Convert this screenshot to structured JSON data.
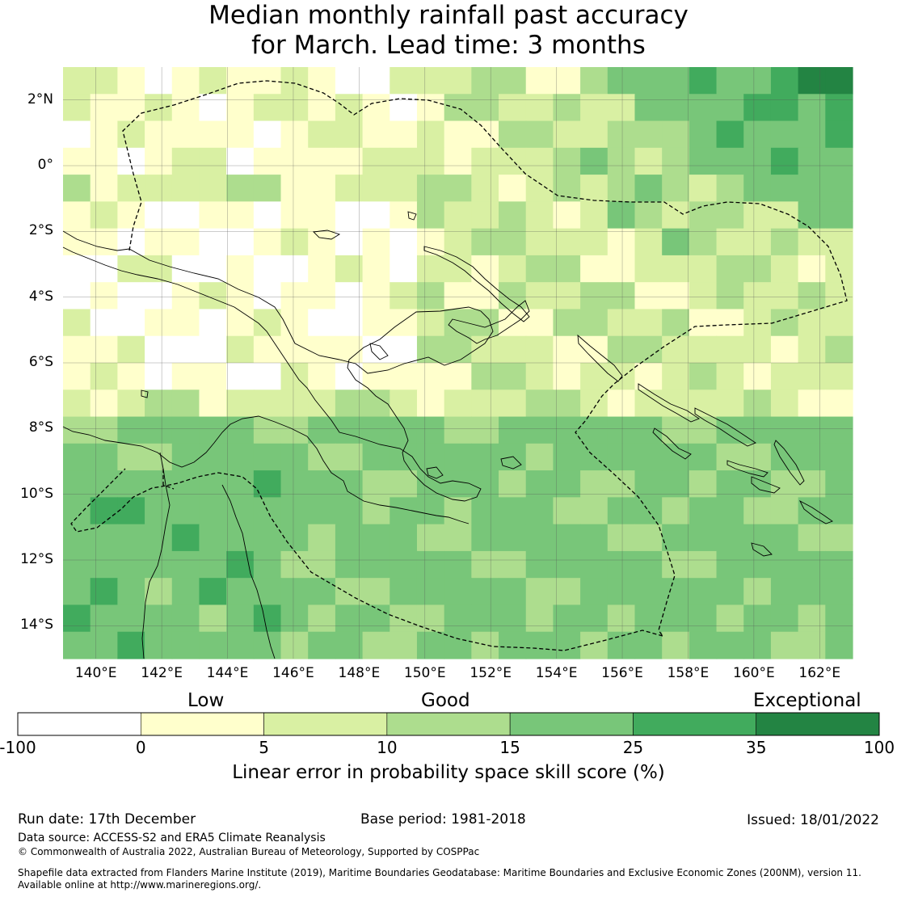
{
  "title": {
    "line1": "Median monthly rainfall past accuracy",
    "line2": "for March. Lead time: 3 months"
  },
  "map": {
    "lon_range": [
      139,
      163
    ],
    "lat_range": [
      -15,
      3
    ],
    "lat_ticks": [
      {
        "value": 2,
        "label": "2°N"
      },
      {
        "value": 0,
        "label": "0°"
      },
      {
        "value": -2,
        "label": "2°S"
      },
      {
        "value": -4,
        "label": "4°S"
      },
      {
        "value": -6,
        "label": "6°S"
      },
      {
        "value": -8,
        "label": "8°S"
      },
      {
        "value": -10,
        "label": "10°S"
      },
      {
        "value": -12,
        "label": "12°S"
      },
      {
        "value": -14,
        "label": "14°S"
      }
    ],
    "lon_ticks": [
      {
        "value": 140,
        "label": "140°E"
      },
      {
        "value": 142,
        "label": "142°E"
      },
      {
        "value": 144,
        "label": "144°E"
      },
      {
        "value": 146,
        "label": "146°E"
      },
      {
        "value": 148,
        "label": "148°E"
      },
      {
        "value": 150,
        "label": "150°E"
      },
      {
        "value": 152,
        "label": "152°E"
      },
      {
        "value": 154,
        "label": "154°E"
      },
      {
        "value": 156,
        "label": "156°E"
      },
      {
        "value": 158,
        "label": "158°E"
      },
      {
        "value": 160,
        "label": "160°E"
      },
      {
        "value": 162,
        "label": "162°E"
      }
    ]
  },
  "legend": {
    "words": {
      "low": "Low",
      "good": "Good",
      "exceptional": "Exceptional"
    },
    "bins": [
      {
        "from": -100,
        "to": 0,
        "color": "#ffffff"
      },
      {
        "from": 0,
        "to": 5,
        "color": "#ffffcc"
      },
      {
        "from": 5,
        "to": 10,
        "color": "#d9f0a3"
      },
      {
        "from": 10,
        "to": 15,
        "color": "#addd8e"
      },
      {
        "from": 15,
        "to": 25,
        "color": "#78c679"
      },
      {
        "from": 25,
        "to": 35,
        "color": "#41ab5d"
      },
      {
        "from": 35,
        "to": 100,
        "color": "#238443"
      }
    ],
    "tick_labels": [
      "-100",
      "0",
      "5",
      "10",
      "15",
      "25",
      "35",
      "100"
    ],
    "axis_label": "Linear error in probability space skill score (%)"
  },
  "footer": {
    "run_date": "Run date: 17th December",
    "base_period": "Base period: 1981-2018",
    "issued": "Issued: 18/01/2022",
    "data_source": "Data source: ACCESS-S2 and ERA5 Climate Reanalysis",
    "copyright": "© Commonwealth of Australia 2022, Australian Bureau of Meteorology, Supported by COSPPac",
    "shapefile_line1": "Shapefile data extracted from Flanders Marine Institute (2019), Maritime Boundaries Geodatabase: Maritime Boundaries and Exclusive Economic Zones (200NM), version 11.",
    "shapefile_line2": "Available online at http://www.marineregions.org/."
  },
  "colors": {
    "coastline": "#000000",
    "eez_boundary": "#000000",
    "gridline": "#555555"
  }
}
